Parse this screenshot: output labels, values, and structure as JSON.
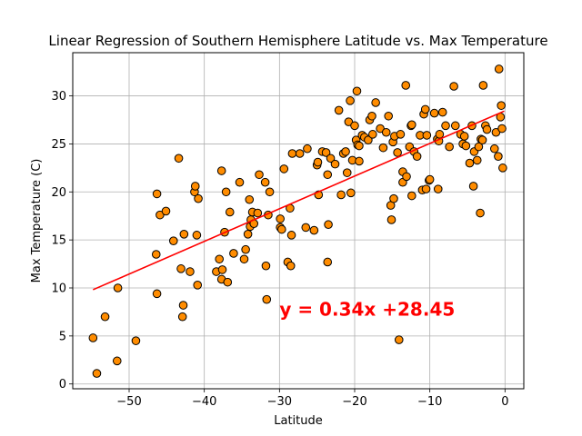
{
  "chart_data": {
    "type": "scatter",
    "title": "Linear Regression of Southern Hemisphere Latitude vs. Max Temperature",
    "xlabel": "Latitude",
    "ylabel": "Max Temperature (C)",
    "xlim": [
      -57.5,
      2.5
    ],
    "ylim": [
      -0.5,
      34.5
    ],
    "xticks": [
      -50,
      -40,
      -30,
      -20,
      -10,
      0
    ],
    "yticks": [
      0,
      5,
      10,
      15,
      20,
      25,
      30
    ],
    "grid": true,
    "marker_color": "#ff8c00",
    "marker_edge_color": "#000000",
    "line_color": "#ff0000",
    "equation_color": "#ff0000",
    "regression": {
      "slope": 0.34,
      "intercept": 28.45,
      "x_range": [
        -54.8,
        -0.1
      ],
      "equation": "y = 0.34x +28.45",
      "equation_position": [
        -30,
        7.1
      ]
    },
    "points": [
      [
        -54.8,
        4.8
      ],
      [
        -54.3,
        1.1
      ],
      [
        -53.2,
        7.0
      ],
      [
        -51.6,
        2.4
      ],
      [
        -51.5,
        10.0
      ],
      [
        -49.1,
        4.5
      ],
      [
        -46.4,
        13.5
      ],
      [
        -46.3,
        19.8
      ],
      [
        -46.3,
        9.4
      ],
      [
        -45.9,
        17.6
      ],
      [
        -45.1,
        18.0
      ],
      [
        -44.1,
        14.9
      ],
      [
        -43.4,
        23.5
      ],
      [
        -43.1,
        12.0
      ],
      [
        -42.9,
        7.0
      ],
      [
        -42.8,
        8.2
      ],
      [
        -42.7,
        15.6
      ],
      [
        -41.9,
        11.7
      ],
      [
        -41.3,
        20.0
      ],
      [
        -41.2,
        20.6
      ],
      [
        -41.0,
        15.5
      ],
      [
        -40.9,
        10.3
      ],
      [
        -40.8,
        19.3
      ],
      [
        -38.4,
        11.7
      ],
      [
        -38.0,
        13.0
      ],
      [
        -37.7,
        22.2
      ],
      [
        -37.7,
        10.9
      ],
      [
        -37.6,
        11.9
      ],
      [
        -37.3,
        15.8
      ],
      [
        -37.1,
        20.0
      ],
      [
        -36.9,
        10.6
      ],
      [
        -36.6,
        17.9
      ],
      [
        -36.1,
        13.6
      ],
      [
        -35.3,
        21.0
      ],
      [
        -34.7,
        13.0
      ],
      [
        -34.5,
        14.0
      ],
      [
        -34.2,
        15.6
      ],
      [
        -34.0,
        19.2
      ],
      [
        -33.9,
        16.4
      ],
      [
        -33.8,
        17.1
      ],
      [
        -33.6,
        17.9
      ],
      [
        -33.4,
        16.7
      ],
      [
        -32.9,
        17.8
      ],
      [
        -32.7,
        21.8
      ],
      [
        -31.9,
        21.0
      ],
      [
        -31.8,
        12.3
      ],
      [
        -31.7,
        8.8
      ],
      [
        -31.5,
        17.6
      ],
      [
        -31.3,
        20.0
      ],
      [
        -29.9,
        17.2
      ],
      [
        -29.9,
        16.3
      ],
      [
        -29.7,
        16.1
      ],
      [
        -29.4,
        22.4
      ],
      [
        -28.9,
        12.7
      ],
      [
        -28.6,
        18.3
      ],
      [
        -28.5,
        12.3
      ],
      [
        -28.4,
        15.5
      ],
      [
        -28.3,
        24.0
      ],
      [
        -27.3,
        24.0
      ],
      [
        -26.5,
        16.3
      ],
      [
        -26.3,
        24.5
      ],
      [
        -25.4,
        16.0
      ],
      [
        -25.0,
        22.8
      ],
      [
        -24.9,
        23.1
      ],
      [
        -24.8,
        19.7
      ],
      [
        -24.3,
        24.2
      ],
      [
        -23.8,
        24.1
      ],
      [
        -23.6,
        21.8
      ],
      [
        -23.6,
        12.7
      ],
      [
        -23.5,
        16.6
      ],
      [
        -23.2,
        23.5
      ],
      [
        -22.6,
        22.9
      ],
      [
        -22.1,
        28.5
      ],
      [
        -21.8,
        19.7
      ],
      [
        -21.5,
        24.0
      ],
      [
        -21.2,
        24.2
      ],
      [
        -21.0,
        22.0
      ],
      [
        -20.8,
        27.3
      ],
      [
        -20.6,
        29.5
      ],
      [
        -20.5,
        19.9
      ],
      [
        -20.3,
        23.3
      ],
      [
        -20.0,
        26.9
      ],
      [
        -19.8,
        25.4
      ],
      [
        -19.7,
        30.5
      ],
      [
        -19.6,
        24.9
      ],
      [
        -19.4,
        23.2
      ],
      [
        -19.4,
        24.8
      ],
      [
        -19.0,
        25.9
      ],
      [
        -18.7,
        25.7
      ],
      [
        -18.2,
        25.4
      ],
      [
        -18.0,
        27.5
      ],
      [
        -17.7,
        27.9
      ],
      [
        -17.6,
        26.0
      ],
      [
        -17.2,
        29.3
      ],
      [
        -16.6,
        26.6
      ],
      [
        -16.2,
        24.6
      ],
      [
        -15.8,
        26.2
      ],
      [
        -15.5,
        27.9
      ],
      [
        -15.2,
        18.6
      ],
      [
        -15.1,
        17.1
      ],
      [
        -14.9,
        25.2
      ],
      [
        -14.8,
        19.3
      ],
      [
        -14.7,
        25.8
      ],
      [
        -14.3,
        24.1
      ],
      [
        -14.1,
        4.6
      ],
      [
        -13.9,
        26.0
      ],
      [
        -13.6,
        21.0
      ],
      [
        -13.6,
        22.1
      ],
      [
        -13.2,
        31.1
      ],
      [
        -13.1,
        21.6
      ],
      [
        -12.7,
        24.7
      ],
      [
        -12.5,
        26.9
      ],
      [
        -12.4,
        27.0
      ],
      [
        -12.4,
        19.6
      ],
      [
        -12.1,
        24.2
      ],
      [
        -11.7,
        23.7
      ],
      [
        -11.3,
        25.9
      ],
      [
        -11.0,
        20.2
      ],
      [
        -10.8,
        28.1
      ],
      [
        -10.6,
        28.6
      ],
      [
        -10.5,
        20.3
      ],
      [
        -10.4,
        25.9
      ],
      [
        -10.1,
        21.2
      ],
      [
        -10.0,
        21.3
      ],
      [
        -9.4,
        28.2
      ],
      [
        -9.0,
        25.5
      ],
      [
        -8.9,
        20.3
      ],
      [
        -8.8,
        25.3
      ],
      [
        -8.7,
        26.0
      ],
      [
        -8.3,
        28.3
      ],
      [
        -7.9,
        26.9
      ],
      [
        -7.4,
        24.7
      ],
      [
        -6.8,
        31.0
      ],
      [
        -6.6,
        26.9
      ],
      [
        -5.9,
        26.0
      ],
      [
        -5.6,
        25.0
      ],
      [
        -5.4,
        25.8
      ],
      [
        -5.2,
        24.8
      ],
      [
        -4.7,
        23.0
      ],
      [
        -4.4,
        26.9
      ],
      [
        -4.2,
        20.6
      ],
      [
        -4.1,
        24.2
      ],
      [
        -3.7,
        23.3
      ],
      [
        -3.5,
        24.7
      ],
      [
        -3.3,
        17.8
      ],
      [
        -3.2,
        25.5
      ],
      [
        -3.0,
        25.4
      ],
      [
        -2.9,
        31.1
      ],
      [
        -2.6,
        26.9
      ],
      [
        -2.4,
        26.5
      ],
      [
        -1.4,
        24.5
      ],
      [
        -1.2,
        26.2
      ],
      [
        -0.9,
        23.7
      ],
      [
        -0.8,
        32.8
      ],
      [
        -0.6,
        27.8
      ],
      [
        -0.5,
        29.0
      ],
      [
        -0.4,
        26.6
      ],
      [
        -0.3,
        22.5
      ]
    ]
  }
}
